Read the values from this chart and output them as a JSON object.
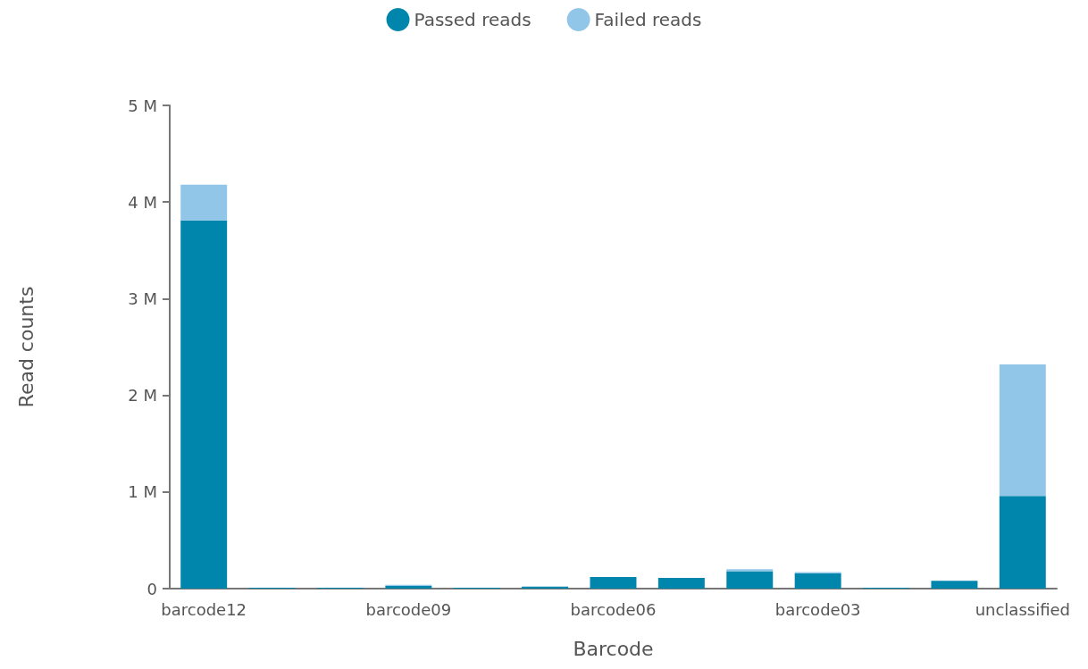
{
  "chart_data": {
    "type": "bar",
    "stacked": true,
    "xlabel": "Barcode",
    "ylabel": "Read counts",
    "categories": [
      "barcode12",
      null,
      null,
      "barcode09",
      null,
      null,
      "barcode06",
      null,
      null,
      "barcode03",
      null,
      null,
      "unclassified"
    ],
    "series": [
      {
        "name": "Passed reads",
        "color": "#0086ac",
        "values": [
          3810000,
          10000,
          10000,
          30000,
          10000,
          20000,
          120000,
          110000,
          180000,
          160000,
          10000,
          80000,
          960000
        ]
      },
      {
        "name": "Failed reads",
        "color": "#92c6e8",
        "values": [
          370000,
          0,
          0,
          10000,
          0,
          0,
          0,
          0,
          20000,
          10000,
          0,
          0,
          1360000
        ]
      }
    ],
    "ylim": [
      0,
      5000000
    ],
    "yticks": [
      {
        "value": 0,
        "label": "0"
      },
      {
        "value": 1000000,
        "label": "1 M"
      },
      {
        "value": 2000000,
        "label": "2 M"
      },
      {
        "value": 3000000,
        "label": "3 M"
      },
      {
        "value": 4000000,
        "label": "4 M"
      },
      {
        "value": 5000000,
        "label": "5 M"
      }
    ],
    "grid": false,
    "legend": "top"
  }
}
